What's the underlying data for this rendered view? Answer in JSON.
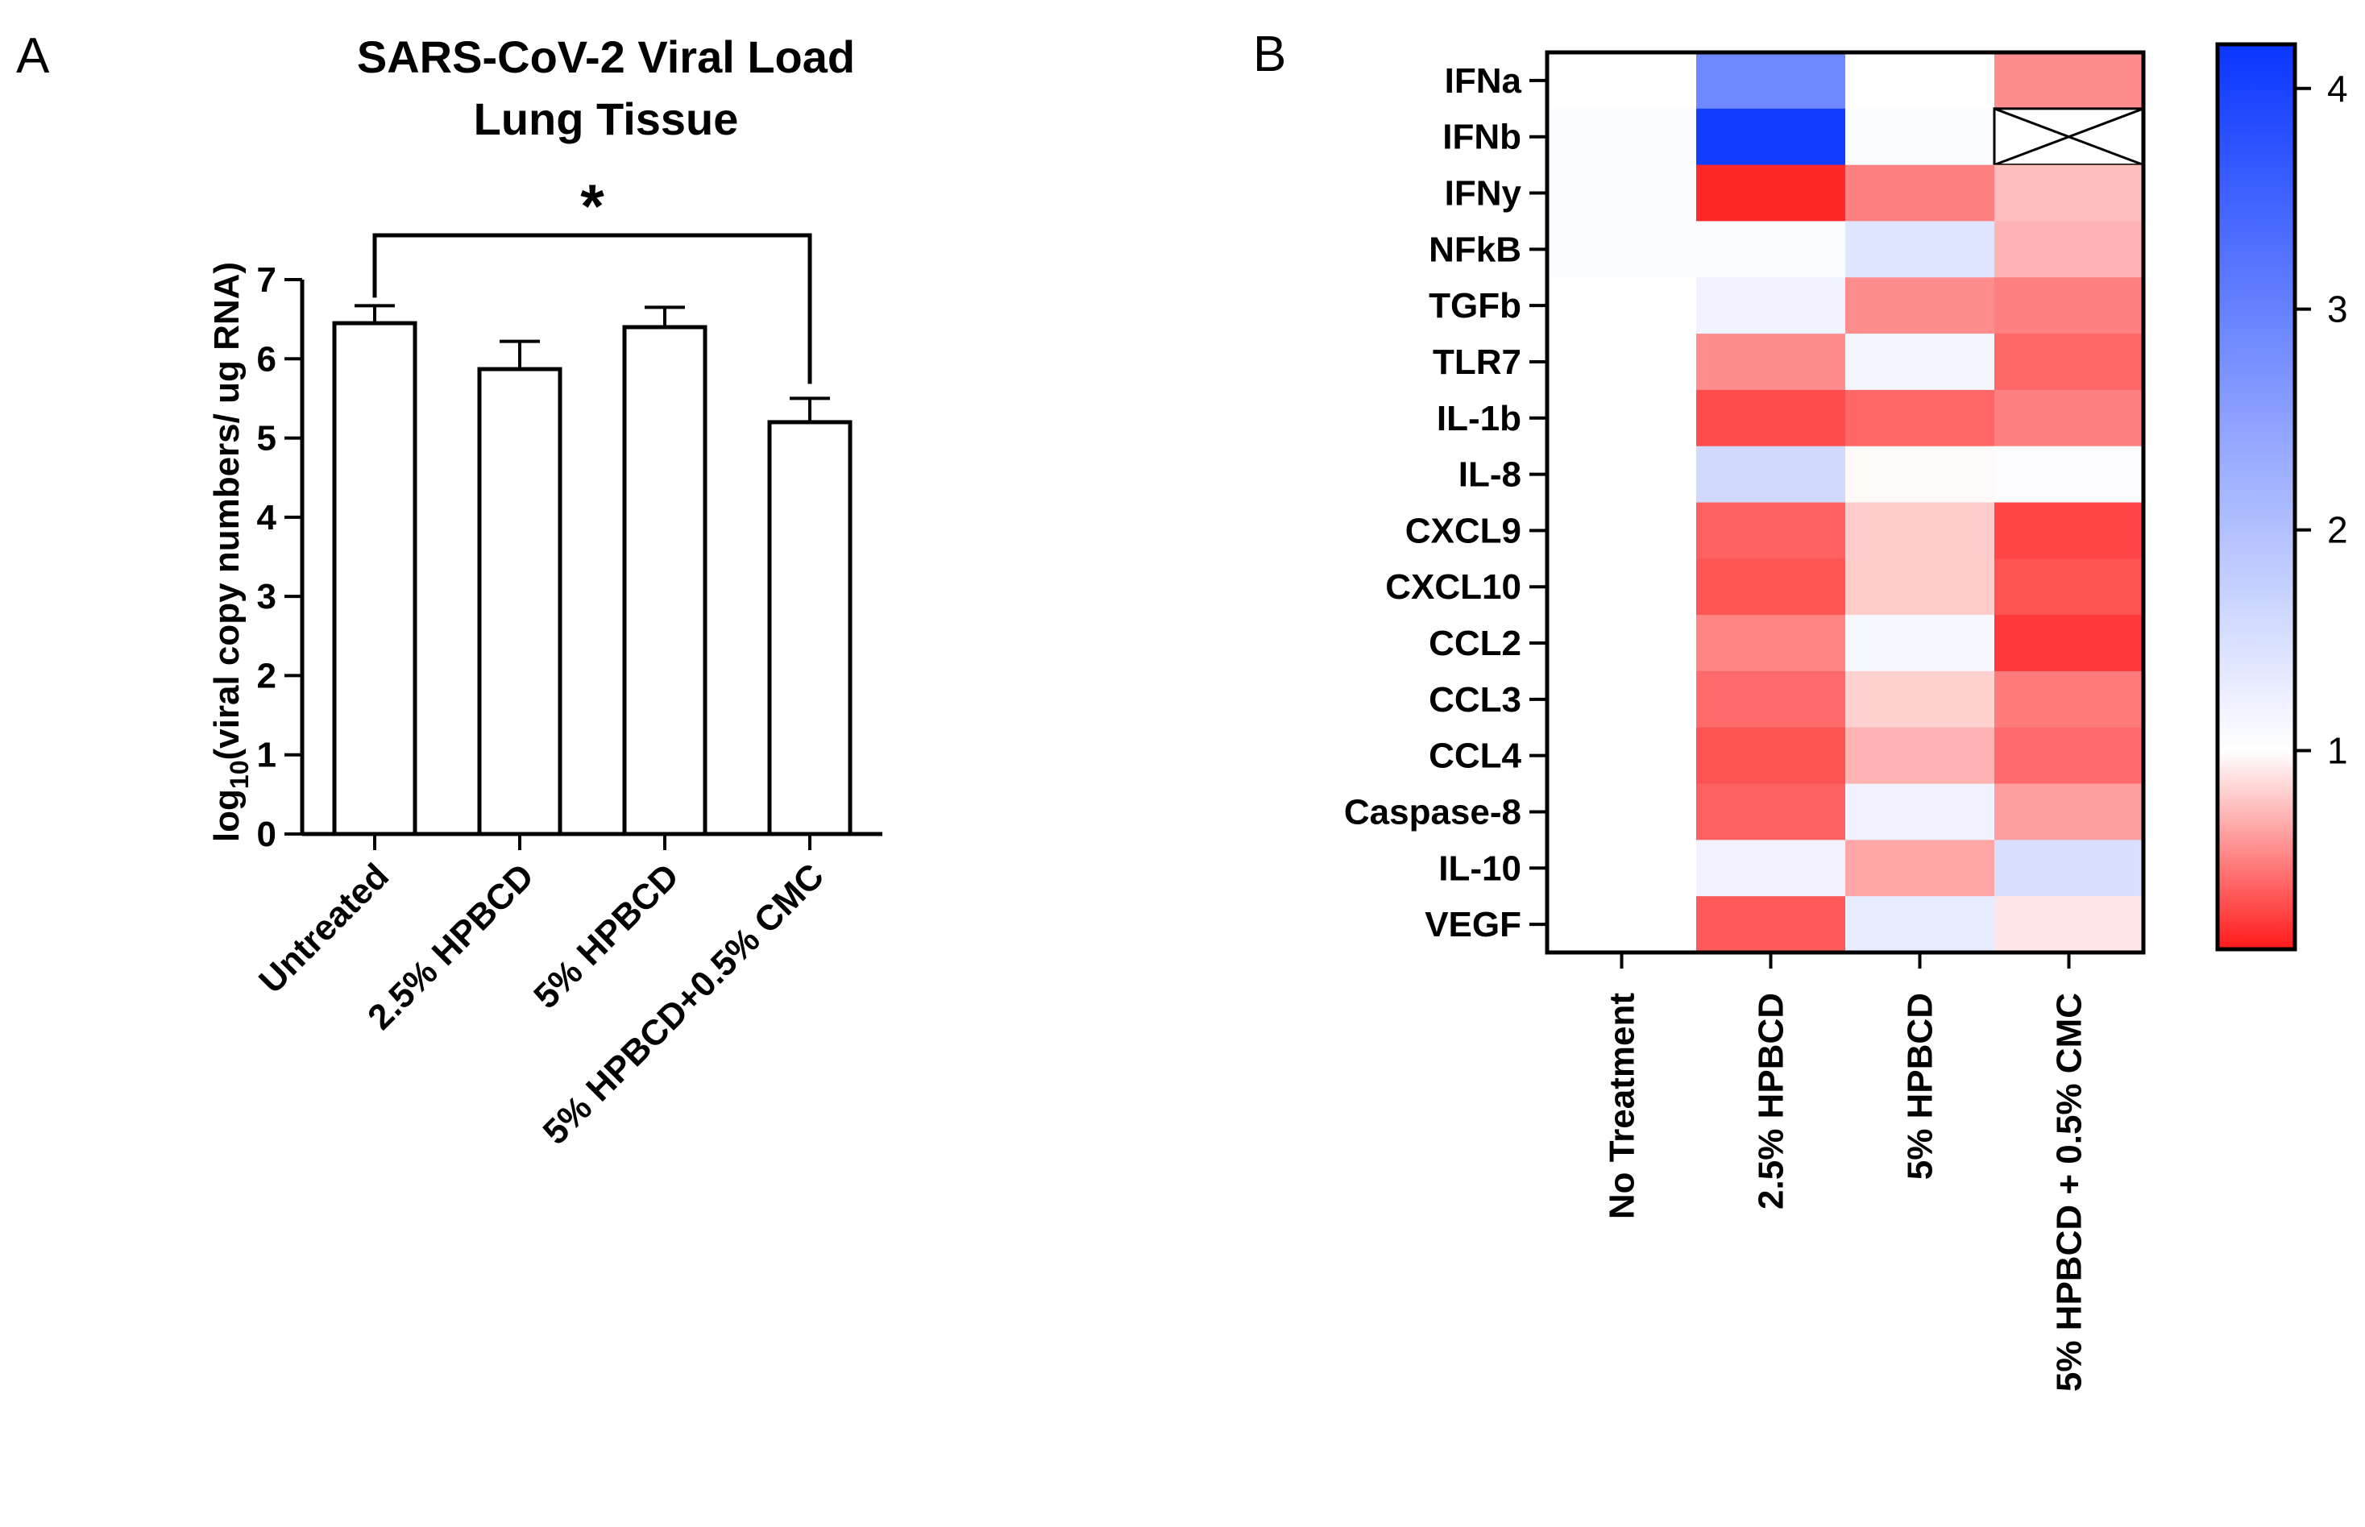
{
  "panels": {
    "a_label": "A",
    "b_label": "B"
  },
  "chart_data": [
    {
      "type": "bar",
      "title": "SARS-CoV-2 Viral Load",
      "subtitle": "Lung Tissue",
      "categories": [
        "Untreated",
        "2.5% HPBCD",
        "5% HPBCD",
        "5% HPBCD+0.5% CMC"
      ],
      "values": [
        6.45,
        5.87,
        6.4,
        5.2
      ],
      "errors": [
        0.22,
        0.35,
        0.25,
        0.3
      ],
      "ylabel_prefix": "log",
      "ylabel_sub": "10",
      "ylabel_suffix": "(viral copy numbers/ ug RNA)",
      "xlabel": "",
      "ylim": [
        0,
        7
      ],
      "yticks": [
        0,
        1,
        2,
        3,
        4,
        5,
        6,
        7
      ],
      "significance": {
        "from": 0,
        "to": 3,
        "label": "*"
      },
      "bar_fill": "#ffffff",
      "bar_stroke": "#000000"
    },
    {
      "type": "heatmap",
      "rows": [
        "IFNa",
        "IFNb",
        "IFNy",
        "NFkB",
        "TGFb",
        "TLR7",
        "IL-1b",
        "IL-8",
        "CXCL9",
        "CXCL10",
        "CCL2",
        "CCL3",
        "CCL4",
        "Caspase-8",
        "IL-10",
        "VEGF"
      ],
      "columns": [
        "No Treatment",
        "2.5% HPBCD",
        "5% HPBCD",
        "5% HPBCD + 0.5% CMC"
      ],
      "values": [
        [
          1.0,
          2.9,
          1.0,
          0.55
        ],
        [
          1.05,
          4.1,
          1.05,
          null
        ],
        [
          1.05,
          0.15,
          0.5,
          0.75
        ],
        [
          1.05,
          1.05,
          1.4,
          0.7
        ],
        [
          1.0,
          1.2,
          0.55,
          0.5
        ],
        [
          1.0,
          0.55,
          1.15,
          0.4
        ],
        [
          1.0,
          0.3,
          0.4,
          0.5
        ],
        [
          1.0,
          1.6,
          0.98,
          1.03
        ],
        [
          1.0,
          0.38,
          0.8,
          0.27
        ],
        [
          1.0,
          0.33,
          0.8,
          0.32
        ],
        [
          1.0,
          0.52,
          1.1,
          0.22
        ],
        [
          1.0,
          0.42,
          0.82,
          0.48
        ],
        [
          1.0,
          0.32,
          0.7,
          0.42
        ],
        [
          1.0,
          0.38,
          1.2,
          0.62
        ],
        [
          1.0,
          1.2,
          0.65,
          1.5
        ],
        [
          1.0,
          0.35,
          1.3,
          0.9
        ]
      ],
      "missing_marker": "X",
      "colorbar": {
        "min": 0.1,
        "mid": 1.0,
        "max": 4.2,
        "ticks": [
          1,
          2,
          3,
          4
        ],
        "low_color": "#ff1a1a",
        "mid_color": "#ffffff",
        "high_color": "#0a36ff"
      }
    }
  ]
}
